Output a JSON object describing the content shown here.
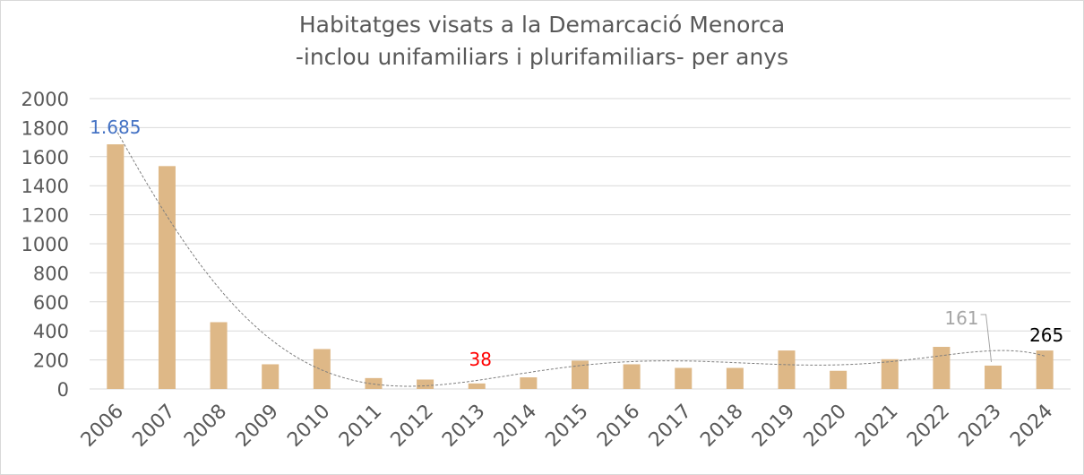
{
  "chart_data": {
    "type": "bar",
    "title": "Habitatges visats a la Demarcació Menorca",
    "subtitle": "-inclou unifamiliars i plurifamiliars- per anys",
    "categories": [
      "2006",
      "2007",
      "2008",
      "2009",
      "2010",
      "2011",
      "2012",
      "2013",
      "2014",
      "2015",
      "2016",
      "2017",
      "2018",
      "2019",
      "2020",
      "2021",
      "2022",
      "2023",
      "2024"
    ],
    "values": [
      1685,
      1535,
      460,
      170,
      275,
      75,
      65,
      38,
      80,
      195,
      170,
      145,
      145,
      265,
      125,
      205,
      290,
      161,
      265
    ],
    "ylim": [
      0,
      2000
    ],
    "yticks": [
      "0",
      "200",
      "400",
      "600",
      "800",
      "1000",
      "1200",
      "1400",
      "1600",
      "1800",
      "2000"
    ],
    "grid": true,
    "legend": "none",
    "trendline": "polynomial",
    "data_labels": [
      {
        "category": "2006",
        "text": "1.685",
        "color": "#4472c4"
      },
      {
        "category": "2013",
        "text": "38",
        "color": "#ff0000"
      },
      {
        "category": "2023",
        "text": "161",
        "color": "#a6a6a6"
      },
      {
        "category": "2024",
        "text": "265",
        "color": "#000000"
      }
    ],
    "bar_color": "#deb887",
    "grid_color": "#d9d9d9",
    "text_color": "#595959"
  }
}
